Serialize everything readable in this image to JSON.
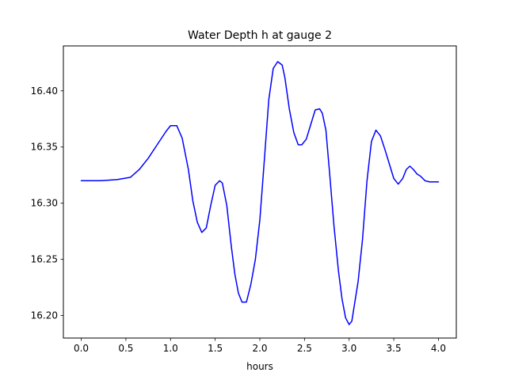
{
  "chart_data": {
    "type": "line",
    "title": "Water Depth h at gauge 2",
    "xlabel": "hours",
    "ylabel": "",
    "xlim": [
      -0.2,
      4.2
    ],
    "ylim": [
      16.18,
      16.44
    ],
    "grid": false,
    "x_ticks": [
      0.0,
      0.5,
      1.0,
      1.5,
      2.0,
      2.5,
      3.0,
      3.5,
      4.0
    ],
    "x_tick_labels": [
      "0.0",
      "0.5",
      "1.0",
      "1.5",
      "2.0",
      "2.5",
      "3.0",
      "3.5",
      "4.0"
    ],
    "y_ticks": [
      16.2,
      16.25,
      16.3,
      16.35,
      16.4
    ],
    "y_tick_labels": [
      "16.20",
      "16.25",
      "16.30",
      "16.35",
      "16.40"
    ],
    "series": [
      {
        "color": "#0000ff",
        "x": [
          0.0,
          0.2,
          0.4,
          0.55,
          0.65,
          0.75,
          0.85,
          0.95,
          1.0,
          1.07,
          1.13,
          1.2,
          1.25,
          1.3,
          1.35,
          1.4,
          1.45,
          1.5,
          1.55,
          1.58,
          1.63,
          1.68,
          1.72,
          1.76,
          1.8,
          1.85,
          1.9,
          1.95,
          2.0,
          2.05,
          2.1,
          2.15,
          2.2,
          2.25,
          2.28,
          2.33,
          2.38,
          2.43,
          2.47,
          2.52,
          2.57,
          2.62,
          2.67,
          2.7,
          2.74,
          2.78,
          2.83,
          2.88,
          2.92,
          2.96,
          3.0,
          3.03,
          3.06,
          3.1,
          3.15,
          3.2,
          3.25,
          3.3,
          3.35,
          3.4,
          3.45,
          3.5,
          3.55,
          3.6,
          3.64,
          3.68,
          3.72,
          3.76,
          3.8,
          3.85,
          3.9,
          3.95,
          4.0
        ],
        "y": [
          16.32,
          16.32,
          16.321,
          16.323,
          16.33,
          16.34,
          16.352,
          16.364,
          16.369,
          16.369,
          16.358,
          16.33,
          16.302,
          16.283,
          16.274,
          16.278,
          16.298,
          16.316,
          16.32,
          16.318,
          16.298,
          16.262,
          16.237,
          16.22,
          16.212,
          16.212,
          16.228,
          16.25,
          16.285,
          16.338,
          16.392,
          16.42,
          16.426,
          16.423,
          16.412,
          16.384,
          16.363,
          16.352,
          16.352,
          16.357,
          16.37,
          16.383,
          16.384,
          16.38,
          16.365,
          16.328,
          16.28,
          16.24,
          16.215,
          16.198,
          16.192,
          16.195,
          16.21,
          16.23,
          16.268,
          16.32,
          16.355,
          16.365,
          16.36,
          16.348,
          16.335,
          16.322,
          16.317,
          16.322,
          16.33,
          16.333,
          16.33,
          16.326,
          16.324,
          16.32,
          16.319,
          16.319,
          16.319
        ]
      }
    ]
  }
}
